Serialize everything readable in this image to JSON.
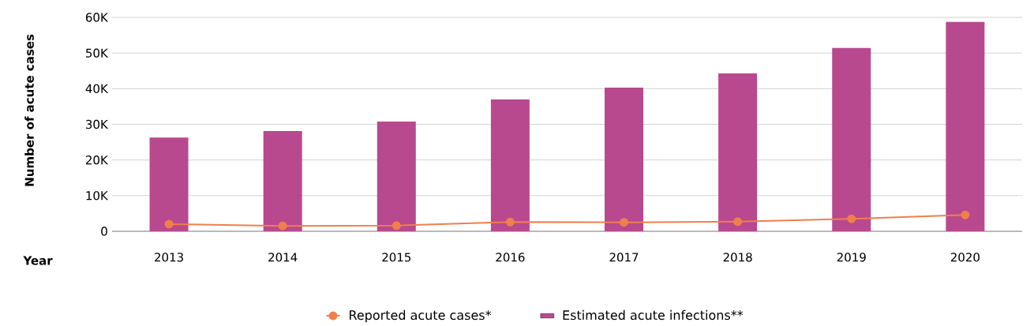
{
  "chart_data": {
    "type": "bar",
    "xlabel": "Year",
    "ylabel": "Number of acute cases",
    "categories": [
      "2013",
      "2014",
      "2015",
      "2016",
      "2017",
      "2018",
      "2019",
      "2020"
    ],
    "series": [
      {
        "name": "Reported acute cases*",
        "type": "line",
        "color": "#f07f4b",
        "marker": "circle",
        "values": [
          2000,
          1500,
          1600,
          2600,
          2500,
          2700,
          3500,
          4600
        ]
      },
      {
        "name": "Estimated acute infections**",
        "color": "#b8498f",
        "values": [
          26300,
          28100,
          30800,
          37000,
          40300,
          44300,
          51400,
          58700
        ]
      }
    ],
    "ylim": [
      0,
      60000
    ],
    "yticks": [
      {
        "value": 0,
        "label": "0"
      },
      {
        "value": 10000,
        "label": "10K"
      },
      {
        "value": 20000,
        "label": "20K"
      },
      {
        "value": 30000,
        "label": "30K"
      },
      {
        "value": 40000,
        "label": "40K"
      },
      {
        "value": 50000,
        "label": "50K"
      },
      {
        "value": 60000,
        "label": "60K"
      }
    ],
    "grid": "y",
    "legend": "bottom"
  }
}
